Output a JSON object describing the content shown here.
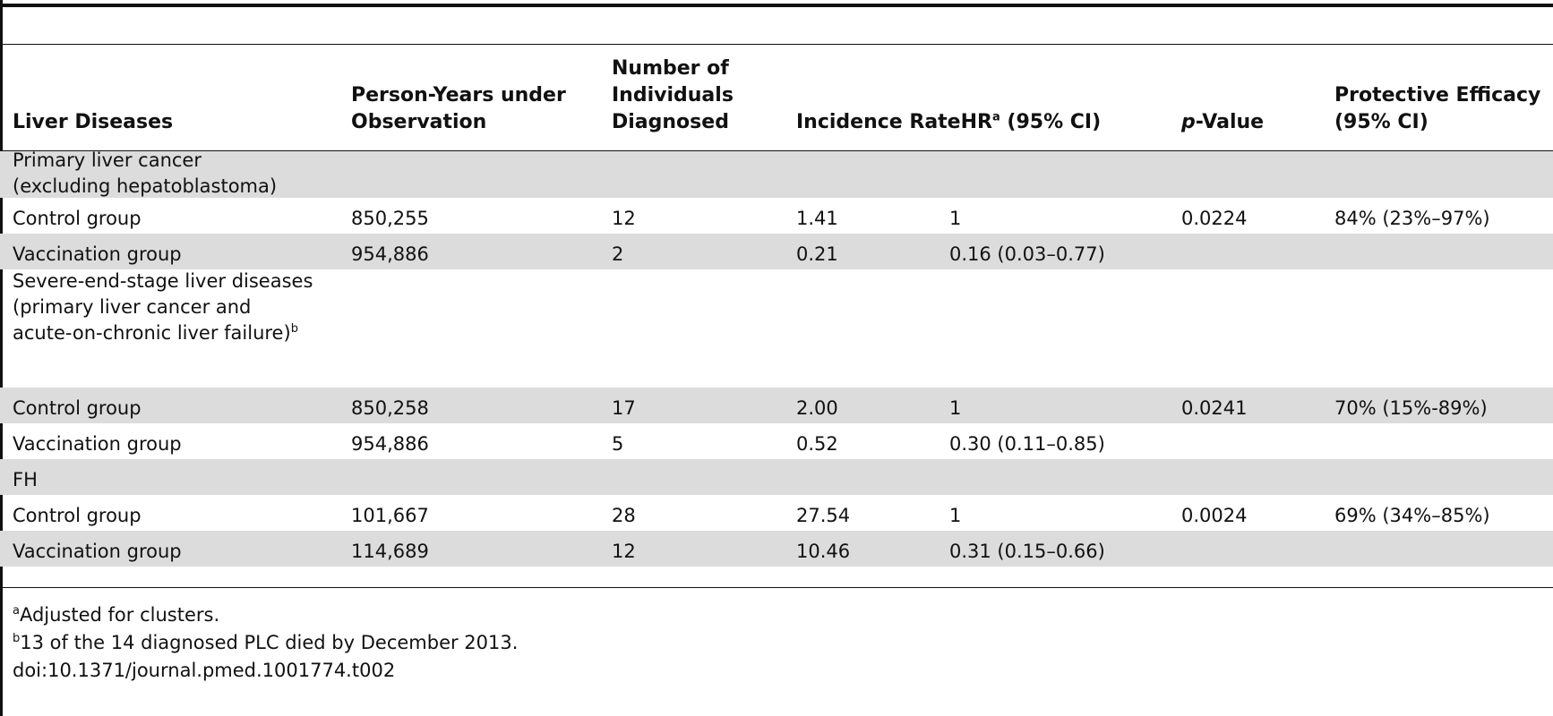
{
  "table": {
    "headers": {
      "disease": "Liver Diseases",
      "person_years": "Person-Years under Observation",
      "number": "Number of Individuals Diagnosed",
      "incidence": "Incidence RateHR",
      "incidence_sup": "a",
      "incidence_suffix": " (95% CI)",
      "p_italic": "p",
      "p_rest": "-Value",
      "efficacy": "Protective Efficacy (95% CI)"
    },
    "sections": [
      {
        "label_lines": [
          "Primary liver cancer",
          "(excluding hepatoblastoma)"
        ],
        "label_sup": "",
        "rows": [
          {
            "group": "Control group",
            "person_years": "850,255",
            "number": "12",
            "incidence_rate": "1.41",
            "hr": "1",
            "p_value": "0.0224",
            "efficacy": "84% (23%–97%)"
          },
          {
            "group": "Vaccination group",
            "person_years": "954,886",
            "number": "2",
            "incidence_rate": "0.21",
            "hr": "0.16 (0.03–0.77)",
            "p_value": "",
            "efficacy": ""
          }
        ]
      },
      {
        "label_lines": [
          "Severe-end-stage liver diseases",
          "(primary liver cancer and",
          "acute-on-chronic liver failure)"
        ],
        "label_sup": "b",
        "rows": [
          {
            "group": "Control group",
            "person_years": "850,258",
            "number": "17",
            "incidence_rate": "2.00",
            "hr": "1",
            "p_value": "0.0241",
            "efficacy": "70% (15%-89%)"
          },
          {
            "group": "Vaccination group",
            "person_years": "954,886",
            "number": "5",
            "incidence_rate": "0.52",
            "hr": "0.30 (0.11–0.85)",
            "p_value": "",
            "efficacy": ""
          }
        ]
      },
      {
        "label_lines": [
          "FH"
        ],
        "label_sup": "",
        "rows": [
          {
            "group": "Control group",
            "person_years": "101,667",
            "number": "28",
            "incidence_rate": "27.54",
            "hr": "1",
            "p_value": "0.0024",
            "efficacy": "69% (34%–85%)"
          },
          {
            "group": "Vaccination group",
            "person_years": "114,689",
            "number": "12",
            "incidence_rate": "10.46",
            "hr": "0.31 (0.15–0.66)",
            "p_value": "",
            "efficacy": ""
          }
        ]
      }
    ]
  },
  "footnotes": {
    "a_marker": "a",
    "a_text": "Adjusted for clusters.",
    "b_marker": "b",
    "b_text": "13 of the 14 diagnosed PLC died by December 2013.",
    "doi": "doi:10.1371/journal.pmed.1001774.t002"
  }
}
